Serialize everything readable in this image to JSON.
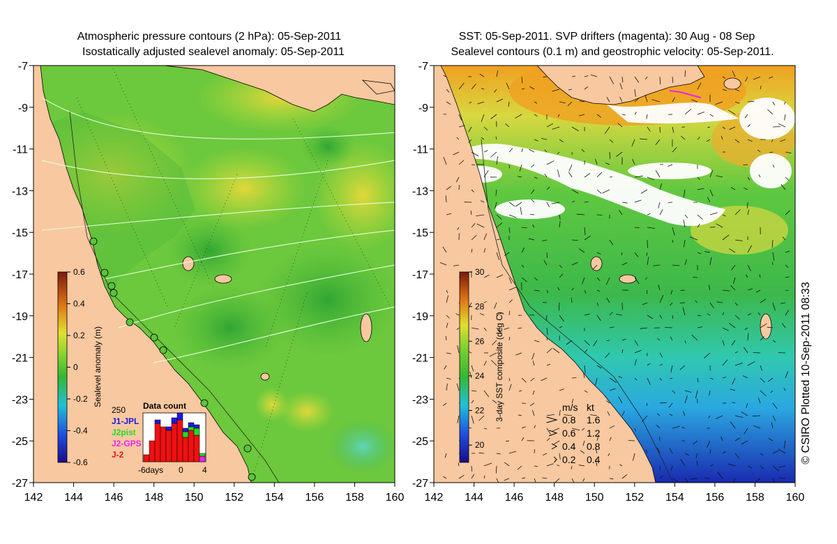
{
  "left_panel": {
    "title_line1": "Atmospheric pressure contours (2 hPa): 05-Sep-2011",
    "title_line2": "Isostatically adjusted sealevel anomaly: 05-Sep-2011",
    "colorbar": {
      "label": "Sealevel anomaly (m)",
      "ticks": [
        "0.6",
        "0.4",
        "0.2",
        "0",
        "-0.2",
        "-0.4",
        "-0.6"
      ],
      "range": [
        -0.6,
        0.6
      ]
    },
    "data_count": {
      "title": "Data count",
      "ymax_label": "250",
      "xlabel_left": "-6days",
      "xlabel_mid": "0",
      "xlabel_right": "4",
      "legend": [
        {
          "label": "J1-JPL",
          "color": "#1a1adf"
        },
        {
          "label": "J2pist",
          "color": "#22dd22"
        },
        {
          "label": "J2-GPS",
          "color": "#ee22ee"
        },
        {
          "label": "J-2",
          "color": "#ee1111"
        }
      ]
    }
  },
  "right_panel": {
    "title_line1": "SST: 05-Sep-2011. SVP drifters (magenta): 30 Aug - 08 Sep",
    "title_line2": "Sealevel contours (0.1 m) and geostrophic velocity: 05-Sep-2011.",
    "colorbar": {
      "label": "3-day SST composite (deg C)",
      "ticks": [
        "30",
        "28",
        "26",
        "24",
        "22",
        "20"
      ],
      "range": [
        19,
        30
      ]
    },
    "velocity_legend": {
      "header_ms": "m/s",
      "header_kt": "kt",
      "rows": [
        {
          "ms": "0.8",
          "kt": "1.6"
        },
        {
          "ms": "0.6",
          "kt": "1.2"
        },
        {
          "ms": "0.4",
          "kt": "0.8"
        },
        {
          "ms": "0.2",
          "kt": "0.4"
        }
      ]
    }
  },
  "axes": {
    "x_ticks": [
      "142",
      "144",
      "146",
      "148",
      "150",
      "152",
      "154",
      "156",
      "158",
      "160"
    ],
    "y_ticks": [
      "-7",
      "-9",
      "-11",
      "-13",
      "-15",
      "-17",
      "-19",
      "-21",
      "-23",
      "-25",
      "-27"
    ],
    "lon_range": [
      142,
      160
    ],
    "lat_range": [
      -27,
      -7
    ]
  },
  "credit": "© CSIRO Plotted 10-Sep-2011 08:33",
  "colors": {
    "land": "#f8c8a0",
    "sla_green": "#5cc43c",
    "sst_green": "#3cbb3c"
  }
}
